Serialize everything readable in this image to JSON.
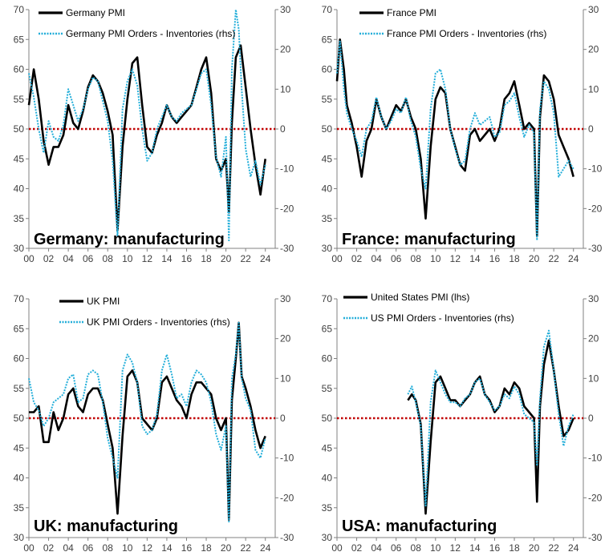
{
  "chart_data": [
    {
      "type": "line",
      "title": "Germany: manufacturing",
      "ylim": [
        30,
        70
      ],
      "y2lim": [
        -30,
        30
      ],
      "xlim": [
        2000,
        2025
      ],
      "yticks": [
        "30",
        "35",
        "40",
        "45",
        "50",
        "55",
        "60",
        "65",
        "70"
      ],
      "y2ticks": [
        "-30",
        "-20",
        "-10",
        "0",
        "10",
        "20",
        "30"
      ],
      "xticks": [
        "00",
        "02",
        "04",
        "06",
        "08",
        "10",
        "12",
        "14",
        "16",
        "18",
        "20",
        "22",
        "24"
      ],
      "legend_position": "top-left",
      "reference_line": {
        "axis": "y",
        "value": 50,
        "color": "#c00000"
      },
      "series": [
        {
          "name": "Germany PMI",
          "axis": "left",
          "color": "#000000",
          "x": [
            2000,
            2000.5,
            2001,
            2001.5,
            2002,
            2002.5,
            2003,
            2003.5,
            2004,
            2004.5,
            2005,
            2005.5,
            2006,
            2006.5,
            2007,
            2007.5,
            2008,
            2008.5,
            2009,
            2009.5,
            2010,
            2010.5,
            2011,
            2011.5,
            2012,
            2012.5,
            2013,
            2013.5,
            2014,
            2014.5,
            2015,
            2015.5,
            2016,
            2016.5,
            2017,
            2017.5,
            2018,
            2018.5,
            2019,
            2019.5,
            2020,
            2020.3,
            2020.6,
            2021,
            2021.5,
            2022,
            2022.5,
            2023,
            2023.5,
            2024
          ],
          "values": [
            54,
            60,
            55,
            48,
            44,
            47,
            47,
            49,
            54,
            51,
            50,
            53,
            57,
            59,
            58,
            56,
            53,
            49,
            33,
            47,
            55,
            61,
            62,
            54,
            47,
            46,
            49,
            51,
            54,
            52,
            51,
            52,
            53,
            54,
            57,
            60,
            62,
            56,
            45,
            43,
            45,
            36,
            51,
            62,
            64,
            57,
            50,
            44,
            39,
            45
          ]
        },
        {
          "name": "Germany PMI Orders - Inventories (rhs)",
          "axis": "right",
          "color": "#23aed9",
          "x": [
            2000,
            2000.5,
            2001,
            2001.5,
            2002,
            2002.5,
            2003,
            2003.5,
            2004,
            2004.5,
            2005,
            2005.5,
            2006,
            2006.5,
            2007,
            2007.5,
            2008,
            2008.5,
            2009,
            2009.5,
            2010,
            2010.5,
            2011,
            2011.5,
            2012,
            2012.5,
            2013,
            2013.5,
            2014,
            2014.5,
            2015,
            2015.5,
            2016,
            2016.5,
            2017,
            2017.5,
            2018,
            2018.5,
            2019,
            2019.5,
            2020,
            2020.3,
            2020.6,
            2021,
            2021.3,
            2021.6,
            2022,
            2022.5,
            2023,
            2023.5,
            2024
          ],
          "values": [
            14,
            8,
            0,
            -6,
            2,
            -2,
            -3,
            1,
            10,
            6,
            2,
            5,
            10,
            13,
            12,
            7,
            2,
            -8,
            -27,
            5,
            12,
            15,
            11,
            0,
            -8,
            -6,
            0,
            3,
            6,
            3,
            2,
            4,
            5,
            6,
            10,
            14,
            15,
            6,
            -7,
            -12,
            -2,
            -28,
            15,
            30,
            25,
            10,
            -5,
            -12,
            -8,
            -14,
            -9
          ]
        }
      ]
    },
    {
      "type": "line",
      "title": "France: manufacturing",
      "ylim": [
        30,
        70
      ],
      "y2lim": [
        -30,
        30
      ],
      "xlim": [
        2000,
        2025
      ],
      "yticks": [
        "30",
        "35",
        "40",
        "45",
        "50",
        "55",
        "60",
        "65",
        "70"
      ],
      "y2ticks": [
        "-30",
        "-20",
        "-10",
        "0",
        "10",
        "20",
        "30"
      ],
      "xticks": [
        "00",
        "02",
        "04",
        "06",
        "08",
        "10",
        "12",
        "14",
        "16",
        "18",
        "20",
        "22",
        "24"
      ],
      "legend_position": "top-left",
      "reference_line": {
        "axis": "y",
        "value": 50,
        "color": "#c00000"
      },
      "series": [
        {
          "name": "France PMI",
          "axis": "left",
          "color": "#000000",
          "x": [
            2000,
            2000.3,
            2000.7,
            2001,
            2001.5,
            2002,
            2002.5,
            2003,
            2003.5,
            2004,
            2004.5,
            2005,
            2005.5,
            2006,
            2006.5,
            2007,
            2007.5,
            2008,
            2008.5,
            2009,
            2009.5,
            2010,
            2010.5,
            2011,
            2011.5,
            2012,
            2012.5,
            2013,
            2013.5,
            2014,
            2014.5,
            2015,
            2015.5,
            2016,
            2016.5,
            2017,
            2017.5,
            2018,
            2018.5,
            2019,
            2019.5,
            2020,
            2020.3,
            2020.6,
            2021,
            2021.5,
            2022,
            2022.5,
            2023,
            2023.5,
            2024
          ],
          "values": [
            58,
            65,
            60,
            54,
            51,
            47,
            42,
            48,
            50,
            55,
            52,
            50,
            52,
            54,
            53,
            55,
            52,
            50,
            45,
            35,
            47,
            55,
            57,
            56,
            50,
            47,
            44,
            43,
            49,
            50,
            48,
            49,
            50,
            48,
            50,
            55,
            56,
            58,
            54,
            50,
            51,
            50,
            32,
            52,
            59,
            58,
            55,
            49,
            47,
            45,
            42
          ]
        },
        {
          "name": "France PMI Orders - Inventories (rhs)",
          "axis": "right",
          "color": "#23aed9",
          "x": [
            2000,
            2000.3,
            2000.7,
            2001,
            2001.5,
            2002,
            2002.5,
            2003,
            2003.5,
            2004,
            2004.5,
            2005,
            2005.5,
            2006,
            2006.5,
            2007,
            2007.5,
            2008,
            2008.5,
            2009,
            2009.5,
            2010,
            2010.5,
            2011,
            2011.5,
            2012,
            2012.5,
            2013,
            2013.5,
            2014,
            2014.5,
            2015,
            2015.5,
            2016,
            2016.5,
            2017,
            2017.5,
            2018,
            2018.5,
            2019,
            2019.5,
            2020,
            2020.3,
            2020.6,
            2021,
            2021.5,
            2022,
            2022.5,
            2023,
            2023.5,
            2024
          ],
          "values": [
            14,
            22,
            10,
            4,
            0,
            -3,
            -7,
            0,
            2,
            8,
            3,
            0,
            2,
            5,
            4,
            8,
            2,
            -2,
            -10,
            -15,
            5,
            14,
            15,
            10,
            0,
            -5,
            -9,
            -8,
            0,
            4,
            1,
            2,
            3,
            -2,
            -1,
            6,
            7,
            9,
            3,
            -2,
            1,
            -1,
            -28,
            5,
            12,
            10,
            4,
            -12,
            -10,
            -8,
            -10
          ]
        }
      ]
    },
    {
      "type": "line",
      "title": "UK: manufacturing",
      "ylim": [
        30,
        70
      ],
      "y2lim": [
        -30,
        30
      ],
      "xlim": [
        2000,
        2025
      ],
      "yticks": [
        "30",
        "35",
        "40",
        "45",
        "50",
        "55",
        "60",
        "65",
        "70"
      ],
      "y2ticks": [
        "-30",
        "-20",
        "-10",
        "0",
        "10",
        "20",
        "30"
      ],
      "xticks": [
        "00",
        "02",
        "04",
        "06",
        "08",
        "10",
        "12",
        "14",
        "16",
        "18",
        "20",
        "22",
        "24"
      ],
      "legend_position": "top-left",
      "reference_line": {
        "axis": "y",
        "value": 50,
        "color": "#c00000"
      },
      "series": [
        {
          "name": "UK PMI",
          "axis": "left",
          "color": "#000000",
          "x": [
            2000,
            2000.5,
            2001,
            2001.5,
            2002,
            2002.5,
            2003,
            2003.5,
            2004,
            2004.5,
            2005,
            2005.5,
            2006,
            2006.5,
            2007,
            2007.5,
            2008,
            2008.5,
            2009,
            2009.5,
            2010,
            2010.5,
            2011,
            2011.5,
            2012,
            2012.5,
            2013,
            2013.5,
            2014,
            2014.5,
            2015,
            2015.5,
            2016,
            2016.5,
            2017,
            2017.5,
            2018,
            2018.5,
            2019,
            2019.5,
            2020,
            2020.3,
            2020.6,
            2021,
            2021.3,
            2021.6,
            2022,
            2022.5,
            2023,
            2023.5,
            2024
          ],
          "values": [
            51,
            51,
            52,
            46,
            46,
            51,
            48,
            50,
            54,
            55,
            52,
            51,
            54,
            55,
            55,
            53,
            49,
            45,
            34,
            47,
            57,
            58,
            56,
            50,
            49,
            48,
            50,
            56,
            57,
            55,
            53,
            52,
            50,
            54,
            56,
            56,
            55,
            54,
            50,
            48,
            50,
            33,
            53,
            60,
            66,
            57,
            55,
            52,
            48,
            45,
            47
          ]
        },
        {
          "name": "UK PMI Orders - Inventories (rhs)",
          "axis": "right",
          "color": "#23aed9",
          "x": [
            2000,
            2000.5,
            2001,
            2001.5,
            2002,
            2002.5,
            2003,
            2003.5,
            2004,
            2004.5,
            2005,
            2005.5,
            2006,
            2006.5,
            2007,
            2007.5,
            2008,
            2008.5,
            2009,
            2009.5,
            2010,
            2010.5,
            2011,
            2011.5,
            2012,
            2012.5,
            2013,
            2013.5,
            2014,
            2014.5,
            2015,
            2015.5,
            2016,
            2016.5,
            2017,
            2017.5,
            2018,
            2018.5,
            2019,
            2019.5,
            2020,
            2020.3,
            2020.6,
            2021,
            2021.3,
            2021.6,
            2022,
            2022.5,
            2023,
            2023.5,
            2024
          ],
          "values": [
            10,
            4,
            2,
            -2,
            0,
            4,
            5,
            6,
            10,
            11,
            4,
            5,
            11,
            12,
            11,
            4,
            -5,
            -10,
            -15,
            12,
            16,
            14,
            9,
            -2,
            -4,
            -3,
            1,
            12,
            16,
            11,
            5,
            6,
            3,
            9,
            12,
            11,
            9,
            4,
            -4,
            -8,
            -2,
            -26,
            10,
            16,
            24,
            10,
            5,
            2,
            -8,
            -10,
            -5
          ]
        }
      ]
    },
    {
      "type": "line",
      "title": "USA: manufacturing",
      "ylim": [
        30,
        70
      ],
      "y2lim": [
        -30,
        30
      ],
      "xlim": [
        2000,
        2025
      ],
      "yticks": [
        "30",
        "35",
        "40",
        "45",
        "50",
        "55",
        "60",
        "65",
        "70"
      ],
      "y2ticks": [
        "-30",
        "-20",
        "-10",
        "0",
        "10",
        "20",
        "30"
      ],
      "xticks": [
        "00",
        "02",
        "04",
        "06",
        "08",
        "10",
        "12",
        "14",
        "16",
        "18",
        "20",
        "22",
        "24"
      ],
      "legend_position": "top-left",
      "reference_line": {
        "axis": "y",
        "value": 50,
        "color": "#c00000"
      },
      "series": [
        {
          "name": "United States PMI (lhs)",
          "axis": "left",
          "color": "#000000",
          "x": [
            2007.2,
            2007.6,
            2008,
            2008.5,
            2009,
            2009.5,
            2010,
            2010.5,
            2011,
            2011.5,
            2012,
            2012.5,
            2013,
            2013.5,
            2014,
            2014.5,
            2015,
            2015.5,
            2016,
            2016.5,
            2017,
            2017.5,
            2018,
            2018.5,
            2019,
            2019.5,
            2020,
            2020.3,
            2020.6,
            2021,
            2021.5,
            2022,
            2022.5,
            2023,
            2023.5,
            2024
          ],
          "values": [
            53,
            54,
            53,
            49,
            34,
            46,
            56,
            57,
            55,
            53,
            53,
            52,
            53,
            54,
            56,
            57,
            54,
            53,
            51,
            52,
            55,
            54,
            56,
            55,
            52,
            51,
            50,
            36,
            52,
            59,
            63,
            58,
            52,
            47,
            48,
            50
          ]
        },
        {
          "name": "US PMI Orders - Inventories (rhs)",
          "axis": "right",
          "color": "#23aed9",
          "x": [
            2007.2,
            2007.6,
            2008,
            2008.5,
            2009,
            2009.5,
            2010,
            2010.5,
            2011,
            2011.5,
            2012,
            2012.5,
            2013,
            2013.5,
            2014,
            2014.5,
            2015,
            2015.5,
            2016,
            2016.5,
            2017,
            2017.5,
            2018,
            2018.5,
            2019,
            2019.5,
            2020,
            2020.3,
            2020.6,
            2021,
            2021.5,
            2022,
            2022.5,
            2023,
            2023.5,
            2024
          ],
          "values": [
            6,
            8,
            4,
            -2,
            -22,
            4,
            12,
            9,
            6,
            4,
            4,
            3,
            5,
            6,
            9,
            10,
            6,
            4,
            2,
            3,
            6,
            5,
            8,
            6,
            1,
            0,
            -1,
            -12,
            5,
            18,
            22,
            12,
            1,
            -7,
            -2,
            1
          ]
        }
      ]
    }
  ]
}
